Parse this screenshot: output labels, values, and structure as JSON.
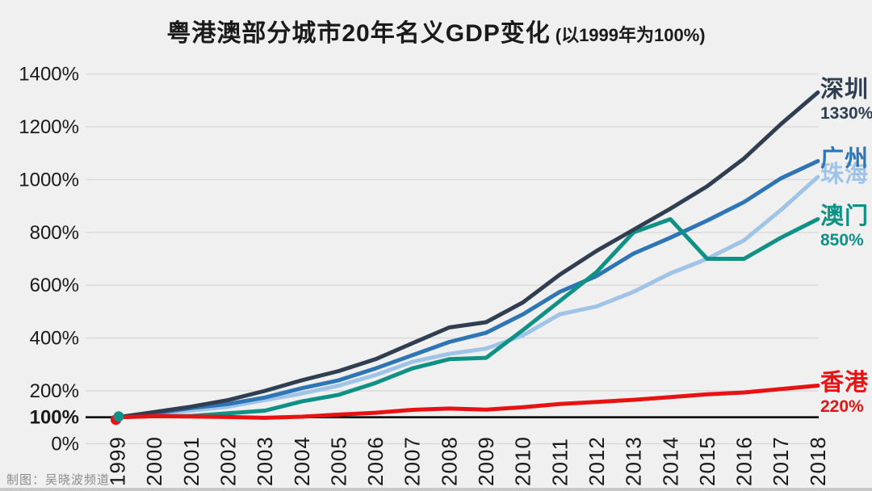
{
  "title": {
    "main": "粤港澳部分城市20年名义GDP变化",
    "paren": "(以1999年为100%)"
  },
  "credit": "制图：吴晓波频道",
  "colors": {
    "background": "#F0F0F1",
    "gridline": "#D9D9D9",
    "baseline": "#000000",
    "tick_text": "#1A1A1A"
  },
  "chart_data": {
    "type": "line",
    "title": "粤港澳部分城市20年名义GDP变化",
    "subtitle": "(以1999年为100%)",
    "x": [
      1999,
      2000,
      2001,
      2002,
      2003,
      2004,
      2005,
      2006,
      2007,
      2008,
      2009,
      2010,
      2011,
      2012,
      2013,
      2014,
      2015,
      2016,
      2017,
      2018
    ],
    "ylim": [
      0,
      1400
    ],
    "yticks": [
      {
        "value": 1400,
        "label": "1400%",
        "bold": false
      },
      {
        "value": 1200,
        "label": "1200%",
        "bold": false
      },
      {
        "value": 1000,
        "label": "1000%",
        "bold": false
      },
      {
        "value": 800,
        "label": "800%",
        "bold": false
      },
      {
        "value": 600,
        "label": "600%",
        "bold": false
      },
      {
        "value": 400,
        "label": "400%",
        "bold": false
      },
      {
        "value": 200,
        "label": "200%",
        "bold": false
      },
      {
        "value": 100,
        "label": "100%",
        "bold": true
      },
      {
        "value": 0,
        "label": "0%",
        "bold": false
      }
    ],
    "baseline_value": 100,
    "grid": "horizontal",
    "legend_position": "right-end-labels",
    "series": [
      {
        "key": "zhuhai",
        "name": "珠海",
        "color": "#A0C4E8",
        "final_label": "",
        "values": [
          100,
          115,
          125,
          140,
          165,
          190,
          220,
          260,
          310,
          340,
          360,
          410,
          490,
          520,
          575,
          645,
          700,
          770,
          885,
          1010
        ]
      },
      {
        "key": "guangzhou",
        "name": "广州",
        "color": "#2E75B6",
        "final_label": "",
        "values": [
          100,
          115,
          135,
          150,
          175,
          210,
          240,
          285,
          335,
          385,
          420,
          490,
          575,
          635,
          720,
          780,
          845,
          915,
          1005,
          1070
        ]
      },
      {
        "key": "macau",
        "name": "澳门",
        "color": "#109185",
        "final_label": "850%",
        "values": [
          100,
          105,
          105,
          115,
          125,
          160,
          185,
          230,
          285,
          320,
          325,
          430,
          540,
          650,
          800,
          850,
          700,
          700,
          780,
          850
        ]
      },
      {
        "key": "shenzhen",
        "name": "深圳",
        "color": "#2F3E50",
        "final_label": "1330%",
        "values": [
          100,
          120,
          140,
          165,
          200,
          240,
          275,
          320,
          380,
          440,
          460,
          535,
          640,
          730,
          810,
          890,
          975,
          1080,
          1210,
          1330
        ]
      },
      {
        "key": "hongkong",
        "name": "香港",
        "color": "#E91212",
        "final_label": "220%",
        "values": [
          100,
          104,
          103,
          101,
          98,
          102,
          110,
          117,
          128,
          133,
          129,
          138,
          150,
          158,
          166,
          176,
          187,
          194,
          207,
          220
        ]
      }
    ],
    "start_marker": {
      "year": 1999,
      "value": 100,
      "colors": [
        "#E91212",
        "#109185"
      ]
    }
  }
}
